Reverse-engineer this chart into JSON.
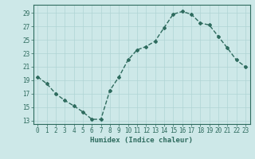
{
  "x": [
    0,
    1,
    2,
    3,
    4,
    5,
    6,
    7,
    8,
    9,
    10,
    11,
    12,
    13,
    14,
    15,
    16,
    17,
    18,
    19,
    20,
    21,
    22,
    23
  ],
  "y": [
    19.5,
    18.5,
    17.0,
    16.0,
    15.2,
    14.3,
    13.2,
    13.2,
    17.5,
    19.5,
    22.0,
    23.5,
    24.0,
    24.8,
    26.8,
    28.8,
    29.2,
    28.8,
    27.5,
    27.2,
    25.5,
    23.8,
    22.0,
    21.0
  ],
  "line_color": "#2e6b5e",
  "marker": "D",
  "marker_size": 2.0,
  "bg_color": "#cde8e8",
  "grid_color": "#b0d4d4",
  "xlabel": "Humidex (Indice chaleur)",
  "ylabel_ticks": [
    13,
    15,
    17,
    19,
    21,
    23,
    25,
    27,
    29
  ],
  "xlim": [
    -0.5,
    23.5
  ],
  "ylim": [
    12.5,
    30.2
  ],
  "tick_fontsize": 5.5,
  "xlabel_fontsize": 6.5,
  "linewidth": 1.0
}
